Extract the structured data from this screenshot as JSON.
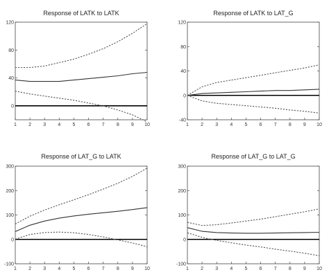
{
  "chart_data": [
    {
      "type": "line",
      "title": "Response of LATK to LATK",
      "x": [
        1,
        2,
        3,
        4,
        5,
        6,
        7,
        8,
        9,
        10
      ],
      "xticks": [
        1,
        2,
        3,
        4,
        5,
        6,
        7,
        8,
        9,
        10
      ],
      "yticks": [
        0,
        40,
        80,
        120
      ],
      "ylim": [
        -20,
        120
      ],
      "series": [
        {
          "role": "response",
          "values": [
            37,
            35,
            35,
            35,
            37,
            39,
            41,
            43,
            46,
            48
          ]
        },
        {
          "role": "upper",
          "values": [
            55,
            55,
            57,
            62,
            67,
            74,
            82,
            92,
            104,
            118
          ]
        },
        {
          "role": "lower",
          "values": [
            21,
            17,
            14,
            11,
            8,
            4,
            0,
            -6,
            -13,
            -23
          ]
        }
      ]
    },
    {
      "type": "line",
      "title": "Response of LATK to LAT_G",
      "x": [
        1,
        2,
        3,
        4,
        5,
        6,
        7,
        8,
        9,
        10
      ],
      "xticks": [
        1,
        2,
        3,
        4,
        5,
        6,
        7,
        8,
        9,
        10
      ],
      "yticks": [
        -40,
        0,
        40,
        80,
        120
      ],
      "ylim": [
        -40,
        120
      ],
      "series": [
        {
          "role": "response",
          "values": [
            0,
            3,
            4,
            5,
            6,
            7,
            8,
            8,
            9,
            10
          ]
        },
        {
          "role": "upper",
          "values": [
            0,
            14,
            21,
            25,
            29,
            33,
            37,
            41,
            45,
            50
          ]
        },
        {
          "role": "lower",
          "values": [
            0,
            -9,
            -13,
            -15,
            -17,
            -19,
            -21,
            -24,
            -26,
            -29
          ]
        }
      ]
    },
    {
      "type": "line",
      "title": "Response of LAT_G to LATK",
      "x": [
        1,
        2,
        3,
        4,
        5,
        6,
        7,
        8,
        9,
        10
      ],
      "xticks": [
        1,
        2,
        3,
        4,
        5,
        6,
        7,
        8,
        9,
        10
      ],
      "yticks": [
        -100,
        0,
        100,
        200,
        300
      ],
      "ylim": [
        -100,
        300
      ],
      "series": [
        {
          "role": "response",
          "values": [
            32,
            58,
            75,
            87,
            96,
            103,
            109,
            115,
            122,
            130
          ]
        },
        {
          "role": "upper",
          "values": [
            63,
            95,
            120,
            142,
            162,
            183,
            206,
            230,
            258,
            292
          ]
        },
        {
          "role": "lower",
          "values": [
            1,
            20,
            28,
            30,
            27,
            20,
            10,
            -2,
            -15,
            -30
          ]
        }
      ]
    },
    {
      "type": "line",
      "title": "Response of LAT_G to LAT_G",
      "x": [
        1,
        2,
        3,
        4,
        5,
        6,
        7,
        8,
        9,
        10
      ],
      "xticks": [
        1,
        2,
        3,
        4,
        5,
        6,
        7,
        8,
        9,
        10
      ],
      "yticks": [
        -100,
        0,
        100,
        200,
        300
      ],
      "ylim": [
        -100,
        300
      ],
      "series": [
        {
          "role": "response",
          "values": [
            48,
            33,
            28,
            26,
            25,
            25,
            26,
            27,
            28,
            29
          ]
        },
        {
          "role": "upper",
          "values": [
            70,
            57,
            60,
            67,
            75,
            83,
            93,
            103,
            113,
            125
          ]
        },
        {
          "role": "lower",
          "values": [
            27,
            8,
            -4,
            -14,
            -23,
            -31,
            -40,
            -48,
            -57,
            -67
          ]
        }
      ]
    }
  ]
}
